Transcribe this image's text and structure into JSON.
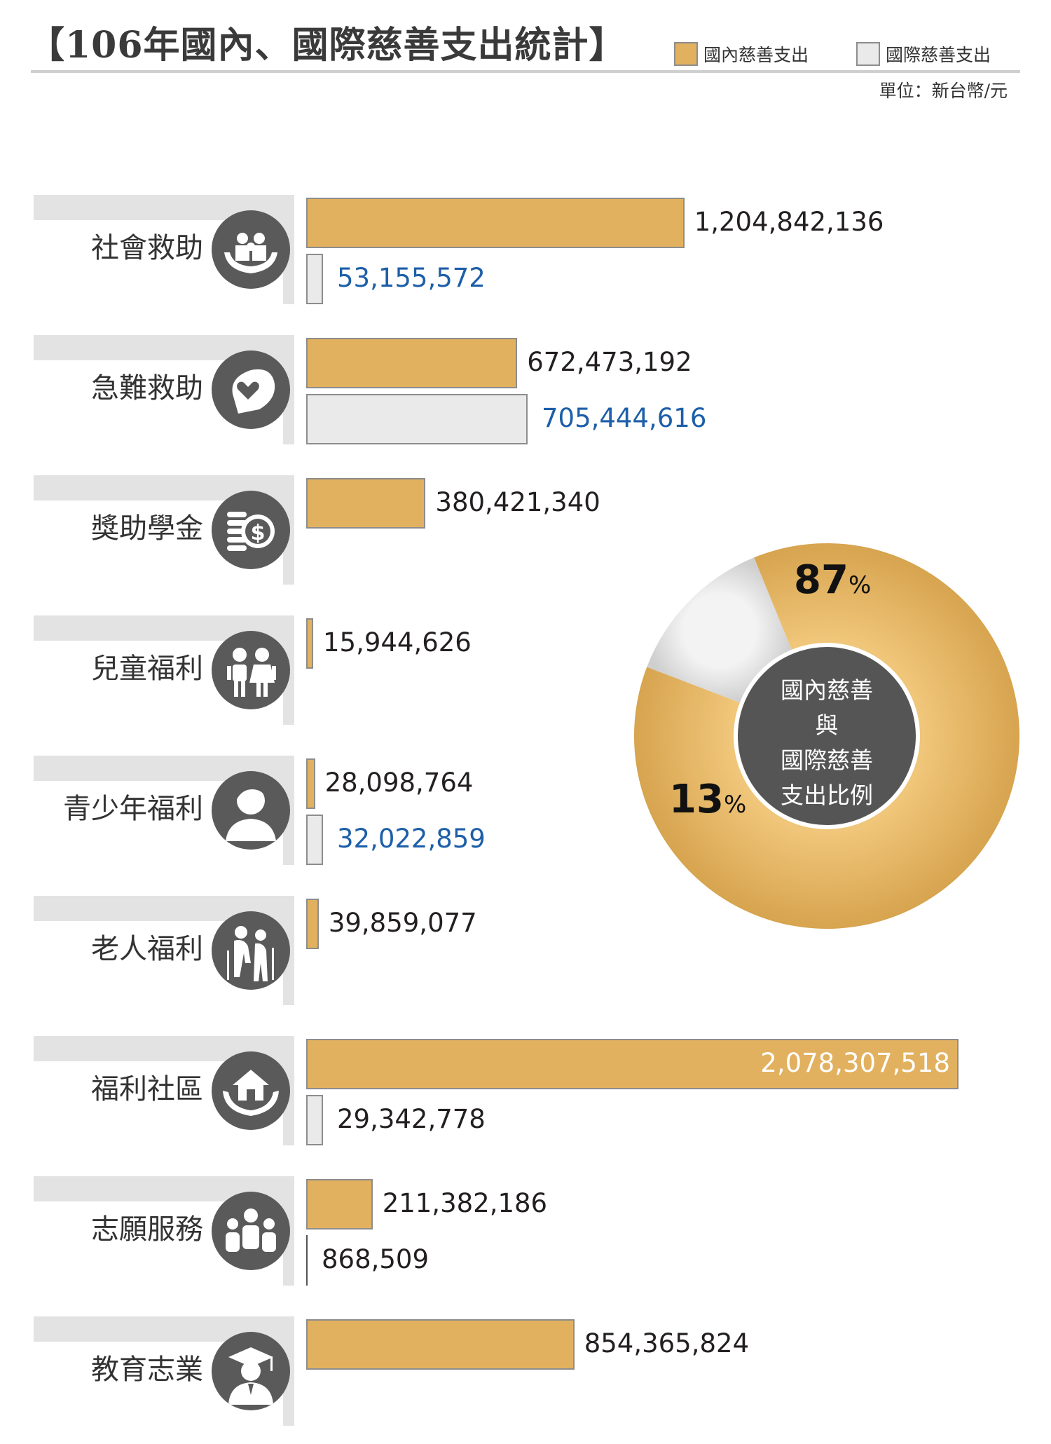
{
  "title": "【106年國內、國際慈善支出統計】",
  "legend": {
    "domestic": {
      "label": "國內慈善支出",
      "color": "#e2b15f"
    },
    "international": {
      "label": "國際慈善支出",
      "color": "#eaeaea"
    }
  },
  "unit": "單位：新台幣/元",
  "chart_data": [
    {
      "type": "bar",
      "orientation": "horizontal",
      "categories": [
        "社會救助",
        "急難救助",
        "獎助學金",
        "兒童福利",
        "青少年福利",
        "老人福利",
        "福利社區",
        "志願服務",
        "教育志業"
      ],
      "category_icons": [
        "family-in-hands-icon",
        "heart-in-hand-icon",
        "coins-icon",
        "children-icon",
        "youth-icon",
        "elderly-couple-icon",
        "house-in-hands-icon",
        "volunteers-group-icon",
        "graduate-icon"
      ],
      "series": [
        {
          "name": "國內慈善支出",
          "values": [
            1204842136,
            672473192,
            380421340,
            15944626,
            28098764,
            39859077,
            2078307518,
            211382186,
            854365824
          ],
          "labels": [
            "1,204,842,136",
            "672,473,192",
            "380,421,340",
            "15,944,626",
            "28,098,764",
            "39,859,077",
            "2,078,307,518",
            "211,382,186",
            "854,365,824"
          ]
        },
        {
          "name": "國際慈善支出",
          "values": [
            53155572,
            705444616,
            null,
            null,
            32022859,
            null,
            29342778,
            868509,
            null
          ],
          "labels": [
            "53,155,572",
            "705,444,616",
            "",
            "",
            "32,022,859",
            "",
            "29,342,778",
            "868,509",
            ""
          ]
        }
      ],
      "xlim": [
        0,
        2078307518
      ],
      "grid": false,
      "legend_position": "top-right"
    },
    {
      "type": "pie",
      "style": "donut",
      "center_label": [
        "國內慈善與",
        "國際慈善",
        "支出比例"
      ],
      "slices": [
        {
          "name": "國內慈善支出",
          "value": 87,
          "label": "87",
          "color": "#e2b15f"
        },
        {
          "name": "國際慈善支出",
          "value": 13,
          "label": "13",
          "color": "#dcdcdc"
        }
      ],
      "percent_sign": "%"
    }
  ]
}
